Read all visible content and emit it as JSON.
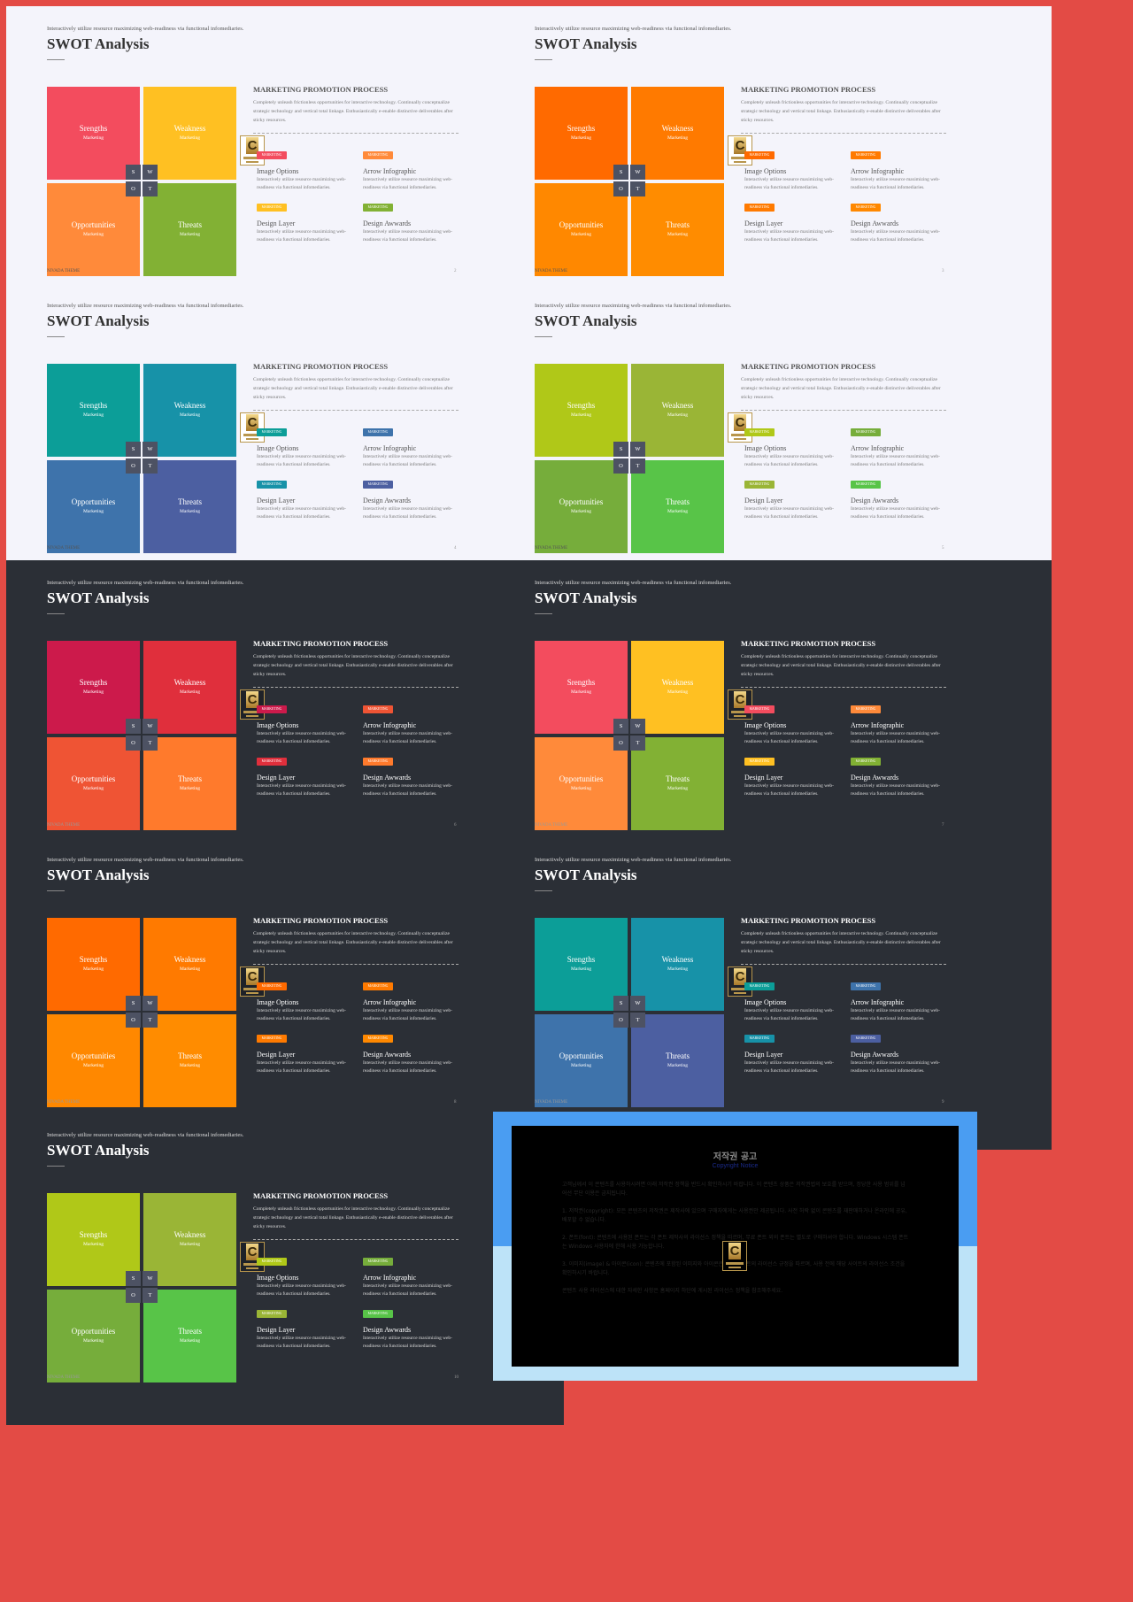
{
  "tagline": "Interactively utilize resource maximizing web-readiness via functional infomediaries.",
  "title": "SWOT Analysis",
  "quadrants": [
    {
      "name": "Srengths",
      "sub": "Marketing"
    },
    {
      "name": "Weakness",
      "sub": "Marketing"
    },
    {
      "name": "Opportunities",
      "sub": "Marketing"
    },
    {
      "name": "Threats",
      "sub": "Marketing"
    }
  ],
  "letters": [
    "S",
    "W",
    "O",
    "T"
  ],
  "process": {
    "title": "MARKETING PROMOTION PROCESS",
    "desc": "Completely unleash frictionless opportunities for interactive technology. Continually conceptualize strategic technology and vertical total linkage. Enthusiastically e-enable distinctive deliverables after sticky resources."
  },
  "items": [
    {
      "badge": "MARKETING",
      "name": "Image Options",
      "desc": "Interactively utilize resource maximizing web-readiness via functional infomediaries."
    },
    {
      "badge": "MARKETING",
      "name": "Arrow Infographic",
      "desc": "Interactively utilize resource maximizing web-readiness via functional infomediaries."
    },
    {
      "badge": "MARKETING",
      "name": "Design Layer",
      "desc": "Interactively utilize resource maximizing web-readiness via functional infomediaries."
    },
    {
      "badge": "MARKETING",
      "name": "Design Awwards",
      "desc": "Interactively utilize resource maximizing web-readiness via functional infomediaries."
    }
  ],
  "logo_letter": "C",
  "footer": "NIVADA THEME",
  "slides": [
    {
      "theme": "light",
      "page": "2",
      "colors": [
        "#f34c5e",
        "#ffc022",
        "#ff8a3a",
        "#82b134"
      ],
      "badges": [
        "#f34c5e",
        "#ff8a3a",
        "#ffc022",
        "#82b134"
      ]
    },
    {
      "theme": "light",
      "page": "3",
      "colors": [
        "#ff6a00",
        "#ff7a00",
        "#ff8800",
        "#ff8c00"
      ],
      "badges": [
        "#ff6a00",
        "#ff7a00",
        "#ff7a00",
        "#ff8800"
      ]
    },
    {
      "theme": "light",
      "page": "4",
      "colors": [
        "#0c9e98",
        "#1792a8",
        "#3e73ab",
        "#4c5fa1"
      ],
      "badges": [
        "#0c9e98",
        "#3e73ab",
        "#1792a8",
        "#4c5fa1"
      ]
    },
    {
      "theme": "light",
      "page": "5",
      "colors": [
        "#b0c818",
        "#9ab536",
        "#76ad3b",
        "#58c448"
      ],
      "badges": [
        "#b0c818",
        "#76ad3b",
        "#9ab536",
        "#58c448"
      ]
    },
    {
      "theme": "dark",
      "page": "6",
      "colors": [
        "#cc1a4b",
        "#e02f3c",
        "#ef5434",
        "#ff7a2c"
      ],
      "badges": [
        "#cc1a4b",
        "#ef5434",
        "#e02f3c",
        "#ff7a2c"
      ]
    },
    {
      "theme": "dark",
      "page": "7",
      "colors": [
        "#f34c5e",
        "#ffc022",
        "#ff8a3a",
        "#82b134"
      ],
      "badges": [
        "#f34c5e",
        "#ff8a3a",
        "#ffc022",
        "#82b134"
      ]
    },
    {
      "theme": "dark",
      "page": "8",
      "colors": [
        "#ff6a00",
        "#ff7a00",
        "#ff8800",
        "#ff8c00"
      ],
      "badges": [
        "#ff6a00",
        "#ff7a00",
        "#ff7a00",
        "#ff8800"
      ]
    },
    {
      "theme": "dark",
      "page": "9",
      "colors": [
        "#0c9e98",
        "#1792a8",
        "#3e73ab",
        "#4c5fa1"
      ],
      "badges": [
        "#0c9e98",
        "#3e73ab",
        "#1792a8",
        "#4c5fa1"
      ]
    },
    {
      "theme": "dark",
      "page": "10",
      "colors": [
        "#b0c818",
        "#9ab536",
        "#76ad3b",
        "#58c448"
      ],
      "badges": [
        "#b0c818",
        "#76ad3b",
        "#9ab536",
        "#58c448"
      ]
    }
  ],
  "notice": {
    "title": "저작권 공고",
    "subtitle": "Copyright Notice",
    "paragraphs": [
      "고객님께서 이 콘텐츠를 사용하시려면 아래 저작권 정책을 반드시 확인하시기 바랍니다. 이 콘텐츠 상품은 저작권법의 보호를 받으며, 정당한 사용 범위를 넘어선 무단 이용은 금지됩니다.",
      "1. 저작권(copyright): 모든 콘텐츠의 저작권은 제작사에 있으며 구매자에게는 사용권만 제공됩니다. 사전 허락 없이 콘텐츠를 재판매하거나 온라인에 공유, 배포할 수 없습니다.",
      "2. 폰트(font): 콘텐츠에 사용된 폰트는 각 폰트 제작사의 라이선스 정책을 따르며, 무료 폰트 외의 폰트는 별도로 구매하셔야 합니다. Windows 시스템 폰트는 Windows 사용자에 한해 사용 가능합니다.",
      "3. 이미지(image) & 아이콘(icon): 콘텐츠에 포함된 이미지와 아이콘은 무료 사이트의 라이선스 규정을 따르며, 사용 전에 해당 사이트의 라이선스 조건을 확인하시기 바랍니다.",
      "콘텐츠 사용 라이선스에 대한 자세한 사항은 홈페이지 하단에 게시된 라이선스 정책을 참조해주세요."
    ]
  }
}
